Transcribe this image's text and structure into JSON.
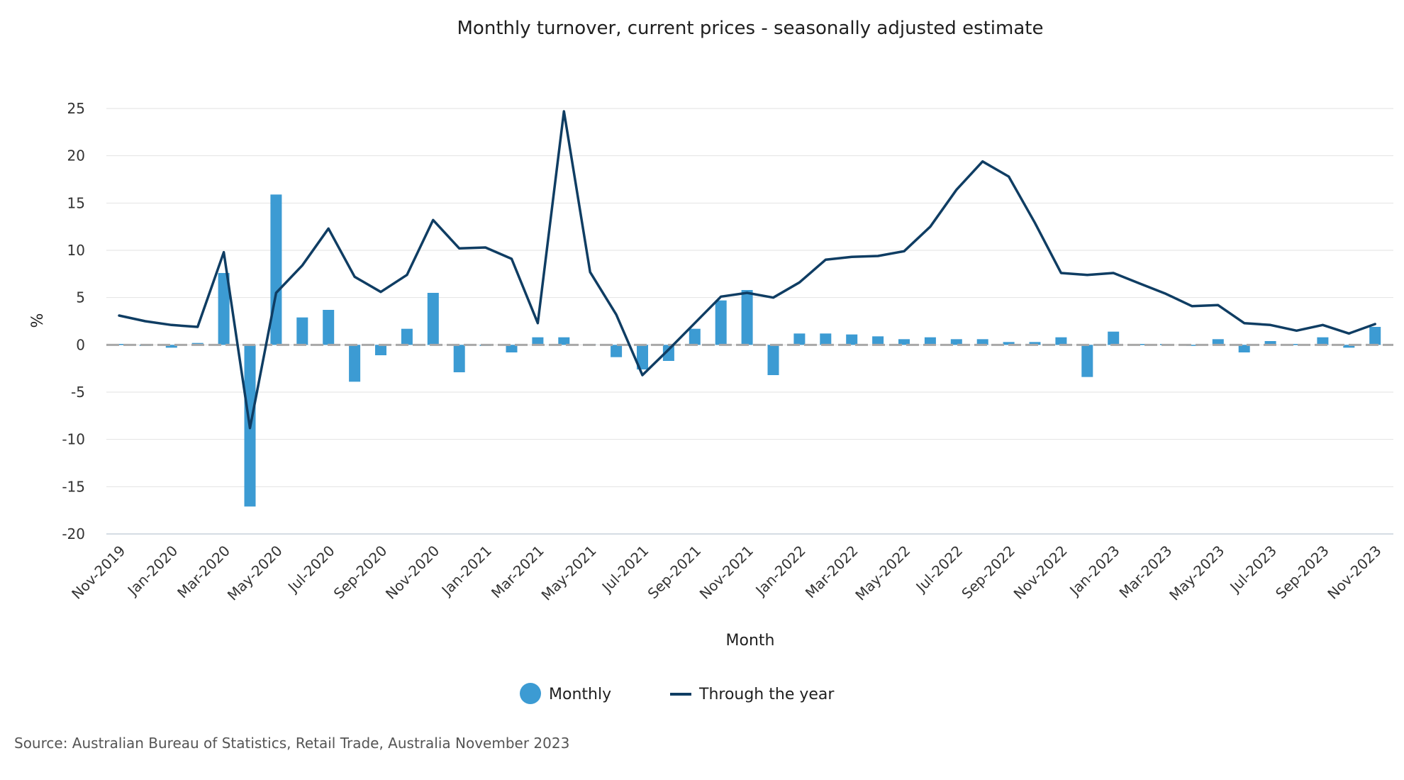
{
  "chart_data": {
    "type": "bar",
    "title": "Monthly turnover, current prices - seasonally adjusted estimate",
    "xlabel": "Month",
    "ylabel": "%",
    "ylim": [
      -20,
      25
    ],
    "yticks": [
      25,
      20,
      15,
      10,
      5,
      0,
      -5,
      -10,
      -15,
      -20
    ],
    "grid": true,
    "legend_position": "bottom",
    "categories": [
      "Nov-2019",
      "Dec-2019",
      "Jan-2020",
      "Feb-2020",
      "Mar-2020",
      "Apr-2020",
      "May-2020",
      "Jun-2020",
      "Jul-2020",
      "Aug-2020",
      "Sep-2020",
      "Oct-2020",
      "Nov-2020",
      "Dec-2020",
      "Jan-2021",
      "Feb-2021",
      "Mar-2021",
      "Apr-2021",
      "May-2021",
      "Jun-2021",
      "Jul-2021",
      "Aug-2021",
      "Sep-2021",
      "Oct-2021",
      "Nov-2021",
      "Dec-2021",
      "Jan-2022",
      "Feb-2022",
      "Mar-2022",
      "Apr-2022",
      "May-2022",
      "Jun-2022",
      "Jul-2022",
      "Aug-2022",
      "Sep-2022",
      "Oct-2022",
      "Nov-2022",
      "Dec-2022",
      "Jan-2023",
      "Feb-2023",
      "Mar-2023",
      "Apr-2023",
      "May-2023",
      "Jun-2023",
      "Jul-2023",
      "Aug-2023",
      "Sep-2023",
      "Oct-2023",
      "Nov-2023"
    ],
    "tick_labels": [
      "Nov-2019",
      "Jan-2020",
      "Mar-2020",
      "May-2020",
      "Jul-2020",
      "Sep-2020",
      "Nov-2020",
      "Jan-2021",
      "Mar-2021",
      "May-2021",
      "Jul-2021",
      "Sep-2021",
      "Nov-2021",
      "Jan-2022",
      "Mar-2022",
      "May-2022",
      "Jul-2022",
      "Sep-2022",
      "Nov-2022",
      "Jan-2023",
      "Mar-2023",
      "May-2023",
      "Jul-2023",
      "Sep-2023",
      "Nov-2023"
    ],
    "series": [
      {
        "name": "Monthly",
        "type": "bar",
        "color": "#3c9bd3",
        "values": [
          0.1,
          0.0,
          -0.3,
          0.2,
          7.6,
          -17.1,
          15.9,
          2.9,
          3.7,
          -3.9,
          -1.1,
          1.7,
          5.5,
          -2.9,
          0.0,
          -0.8,
          0.8,
          0.8,
          0.1,
          -1.3,
          -2.6,
          -1.7,
          1.7,
          4.7,
          5.8,
          -3.2,
          1.2,
          1.2,
          1.1,
          0.9,
          0.6,
          0.8,
          0.6,
          0.6,
          0.3,
          0.3,
          0.8,
          -3.4,
          1.4,
          0.1,
          0.1,
          0.0,
          0.6,
          -0.8,
          0.4,
          0.1,
          0.8,
          -0.3,
          1.9
        ]
      },
      {
        "name": "Through the year",
        "type": "line",
        "color": "#0f3d63",
        "values": [
          3.1,
          2.5,
          2.1,
          1.9,
          9.8,
          -8.8,
          5.5,
          8.4,
          12.3,
          7.2,
          5.6,
          7.4,
          13.2,
          10.2,
          10.3,
          9.1,
          2.3,
          24.7,
          7.7,
          3.2,
          -3.2,
          -0.5,
          2.3,
          5.1,
          5.5,
          5.0,
          6.6,
          9.0,
          9.3,
          9.4,
          9.9,
          12.5,
          16.4,
          19.4,
          17.8,
          12.9,
          7.6,
          7.4,
          7.6,
          6.5,
          5.4,
          4.1,
          4.2,
          2.3,
          2.1,
          1.5,
          2.1,
          1.2,
          2.2
        ]
      }
    ],
    "source": "Source: Australian Bureau of Statistics, Retail Trade, Australia November 2023"
  },
  "colors": {
    "bar": "#3c9bd3",
    "line": "#0f3d63",
    "zero_line": "#a8a8a8",
    "grid": "#e2e2e2"
  }
}
